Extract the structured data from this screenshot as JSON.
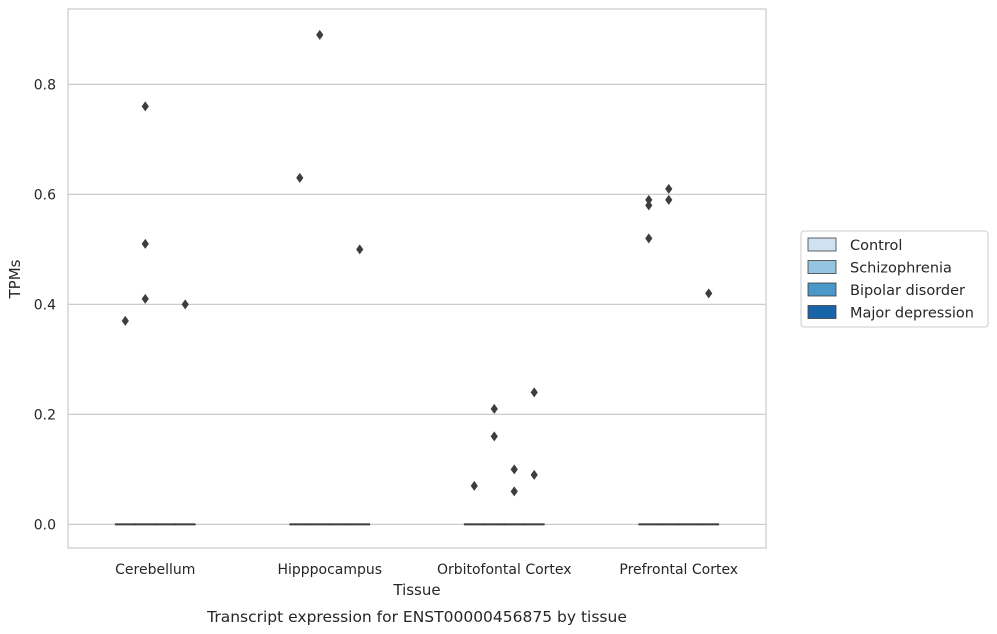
{
  "chart_data": {
    "type": "boxplot",
    "xlabel": "Tissue",
    "ylabel": "TPMs",
    "caption": "Transcript expression for ENST00000456875 by tissue",
    "categories": [
      "Cerebellum",
      "Hipppocampus",
      "Orbitofontal Cortex",
      "Prefrontal Cortex"
    ],
    "ylim": [
      -0.043,
      0.937
    ],
    "yticks": [
      0.0,
      0.2,
      0.4,
      0.6,
      0.8
    ],
    "ytick_labels": [
      "0.0",
      "0.2",
      "0.4",
      "0.6",
      "0.8"
    ],
    "grid": "horizontal",
    "legend": {
      "placement": "outside-right",
      "entries": [
        {
          "name": "Control",
          "color": "#d0e1f2"
        },
        {
          "name": "Schizophrenia",
          "color": "#94c4df"
        },
        {
          "name": "Bipolar disorder",
          "color": "#4a98c9"
        },
        {
          "name": "Major depression",
          "color": "#1764ab"
        }
      ]
    },
    "series": [
      {
        "name": "Control",
        "box": [
          [
            0,
            0,
            0,
            0,
            0
          ],
          [
            0,
            0,
            0,
            0,
            0
          ],
          [
            0,
            0,
            0,
            0,
            0
          ],
          [
            0,
            0,
            0,
            0,
            0
          ]
        ],
        "outliers": [
          [
            0.37
          ],
          [
            0.63
          ],
          [
            0.07
          ],
          [
            0.52,
            0.58,
            0.59
          ]
        ]
      },
      {
        "name": "Schizophrenia",
        "box": [
          [
            0,
            0,
            0,
            0,
            0
          ],
          [
            0,
            0,
            0,
            0,
            0
          ],
          [
            0,
            0,
            0,
            0,
            0
          ],
          [
            0,
            0,
            0,
            0,
            0
          ]
        ],
        "outliers": [
          [
            0.76,
            0.51,
            0.41
          ],
          [
            0.89
          ],
          [
            0.21,
            0.16
          ],
          [
            0.61,
            0.59
          ]
        ]
      },
      {
        "name": "Bipolar disorder",
        "box": [
          [
            0,
            0,
            0,
            0,
            0
          ],
          [
            0,
            0,
            0,
            0,
            0
          ],
          [
            0,
            0,
            0,
            0,
            0
          ],
          [
            0,
            0,
            0,
            0,
            0
          ]
        ],
        "outliers": [
          [],
          [],
          [
            0.1,
            0.06
          ],
          []
        ]
      },
      {
        "name": "Major depression",
        "box": [
          [
            0,
            0,
            0,
            0,
            0
          ],
          [
            0,
            0,
            0,
            0,
            0
          ],
          [
            0,
            0,
            0,
            0,
            0
          ],
          [
            0,
            0,
            0,
            0,
            0
          ]
        ],
        "outliers": [
          [
            0.4
          ],
          [
            0.5
          ],
          [
            0.24,
            0.09
          ],
          [
            0.42
          ]
        ]
      }
    ],
    "colors": {
      "grid": "#cccccc",
      "spine": "#cccccc",
      "marker": "#3d3d3d",
      "box_edge": "#3d3d3d"
    }
  }
}
